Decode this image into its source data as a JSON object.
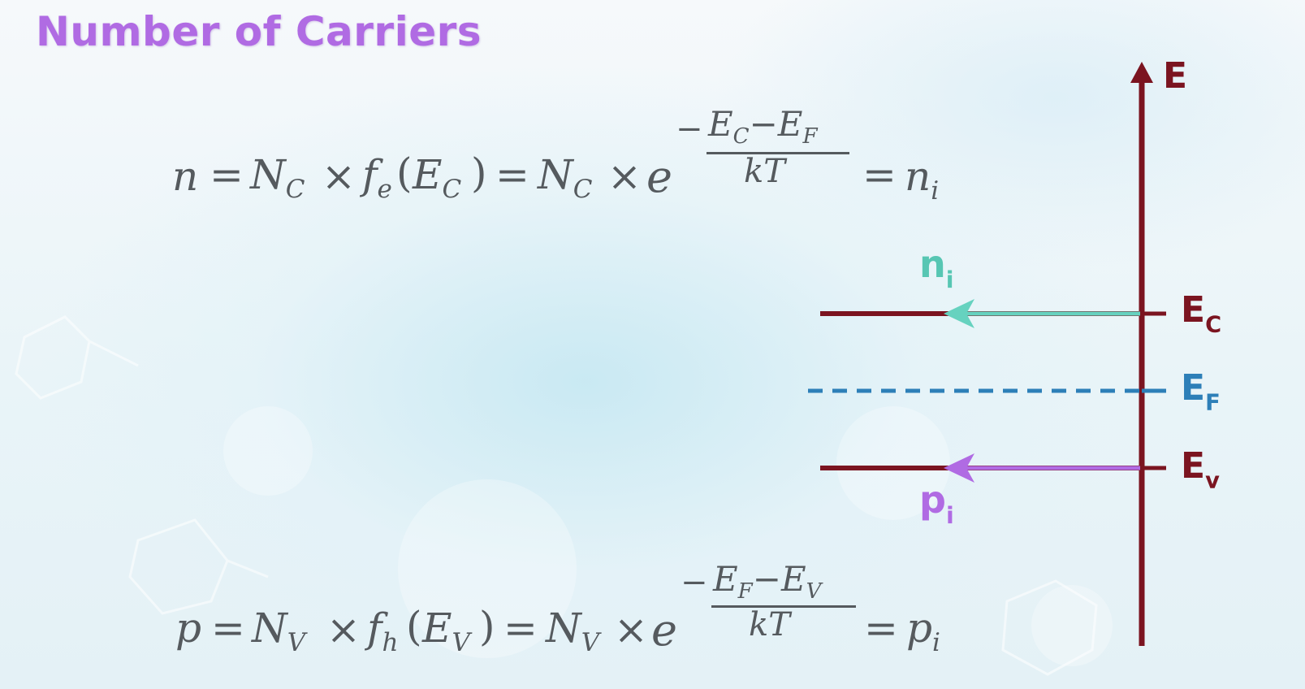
{
  "slide": {
    "title": "Number of Carriers"
  },
  "equations": {
    "n": {
      "lhs": "n",
      "eq": "=",
      "N": "N",
      "N_sub": "C",
      "times": "×",
      "f": "f",
      "f_sub": "e",
      "arg_open": "(",
      "arg_E": "E",
      "arg_sub": "C",
      "arg_close": ")",
      "exp_base": "e",
      "exp_minus": "−",
      "num_E1": "E",
      "num_E1_sub": "C",
      "num_minus": "−",
      "num_E2": "E",
      "num_E2_sub": "F",
      "den": "kT",
      "result": "n",
      "result_sub": "i"
    },
    "p": {
      "lhs": "p",
      "eq": "=",
      "N": "N",
      "N_sub": "V",
      "times": "×",
      "f": "f",
      "f_sub": "h",
      "arg_open": "(",
      "arg_E": "E",
      "arg_sub": "V",
      "arg_close": ")",
      "exp_base": "e",
      "exp_minus": "−",
      "num_E1": "E",
      "num_E1_sub": "F",
      "num_minus": "−",
      "num_E2": "E",
      "num_E2_sub": "V",
      "den": "kT",
      "result": "p",
      "result_sub": "i"
    }
  },
  "diagram": {
    "axis_label": "E",
    "levels": {
      "Ec": {
        "base": "E",
        "sub": "C"
      },
      "Ef": {
        "base": "E",
        "sub": "F"
      },
      "Ev": {
        "base": "E",
        "sub": "v"
      }
    },
    "carriers": {
      "ni": {
        "base": "n",
        "sub": "i"
      },
      "pi": {
        "base": "p",
        "sub": "i"
      }
    },
    "colors": {
      "axis": "#7b1420",
      "fermi": "#2d7fb8",
      "electron_arrow": "#66d2bf",
      "hole_arrow": "#b06be3"
    }
  }
}
